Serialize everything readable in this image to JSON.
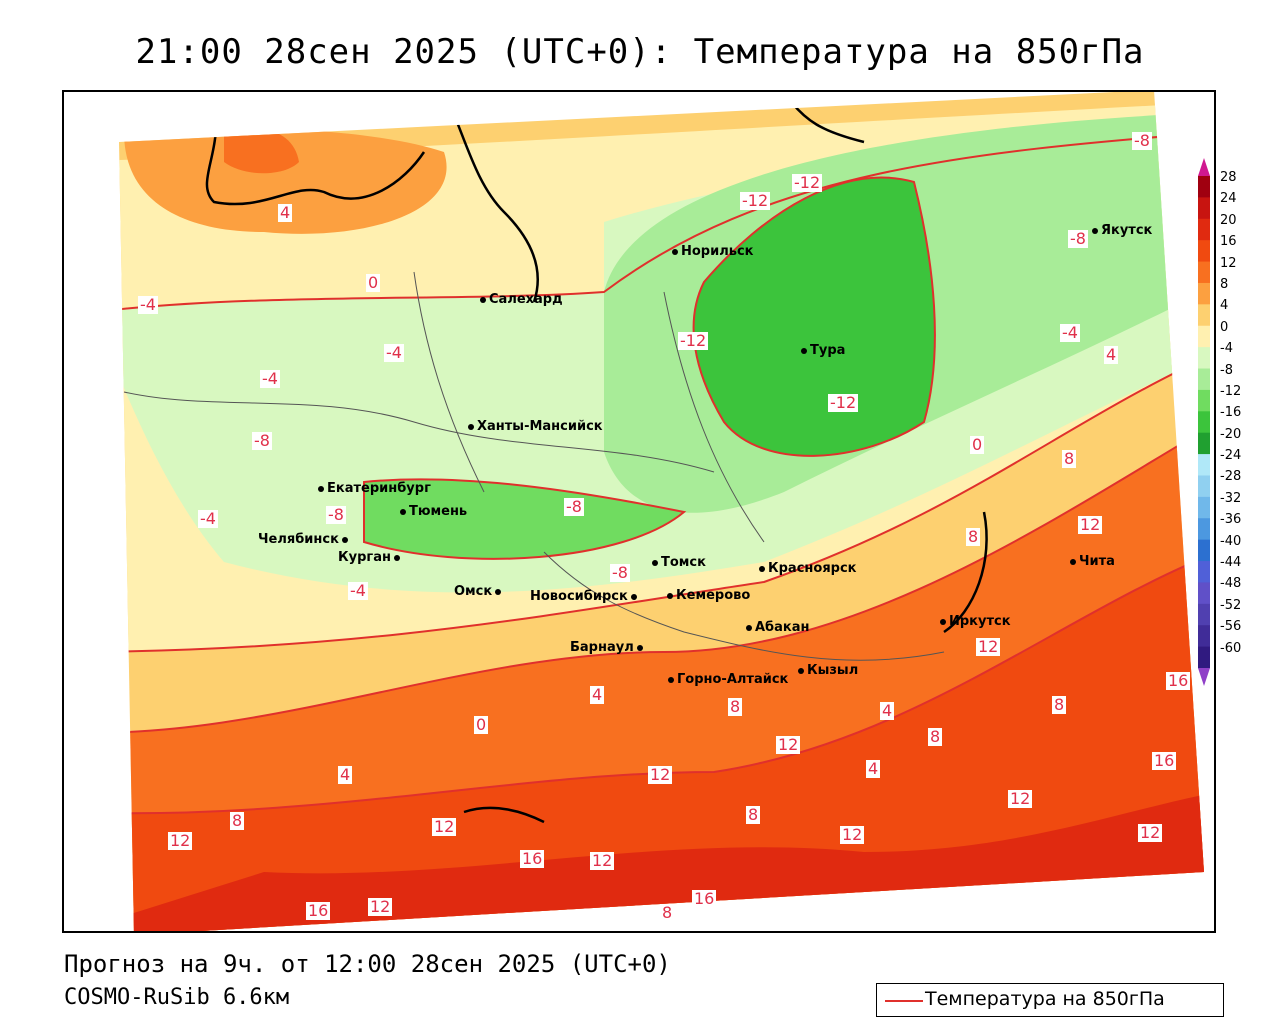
{
  "title": "21:00 28сен 2025 (UTC+0): Температура на 850гПа",
  "footer": {
    "forecast": "Прогноз на 9ч. от 12:00 28сен 2025 (UTC+0)",
    "model": "COSMO-RuSib 6.6км"
  },
  "legend": {
    "label": "Температура на 850гПа",
    "line_color": "#e0302c"
  },
  "colorbar": {
    "labels": [
      "28",
      "24",
      "20",
      "16",
      "12",
      "8",
      "4",
      "0",
      "-4",
      "-8",
      "-12",
      "-16",
      "-20",
      "-24",
      "-28",
      "-32",
      "-36",
      "-40",
      "-44",
      "-48",
      "-52",
      "-56",
      "-60"
    ],
    "colors": [
      "#a00010",
      "#c81410",
      "#e02a10",
      "#f04a10",
      "#f87020",
      "#fca040",
      "#fdd070",
      "#fff0b0",
      "#d8f8c0",
      "#a8ec98",
      "#70dc60",
      "#3cc43c",
      "#20a030",
      "#b0e8f8",
      "#90d0f0",
      "#70b8ea",
      "#4c98e0",
      "#2c70d0",
      "#5060d8",
      "#6050c8",
      "#5040b0",
      "#402c98",
      "#301a80"
    ]
  },
  "cities": [
    {
      "name": "Норильск"
    },
    {
      "name": "Салехард"
    },
    {
      "name": "Тура"
    },
    {
      "name": "Якутск"
    },
    {
      "name": "Ханты-Мансийск"
    },
    {
      "name": "Екатеринбург"
    },
    {
      "name": "Тюмень"
    },
    {
      "name": "Челябинск"
    },
    {
      "name": "Курган"
    },
    {
      "name": "Омск"
    },
    {
      "name": "Томск"
    },
    {
      "name": "Красноярск"
    },
    {
      "name": "Новосибирск"
    },
    {
      "name": "Кемерово"
    },
    {
      "name": "Барнаул"
    },
    {
      "name": "Абакан"
    },
    {
      "name": "Иркутск"
    },
    {
      "name": "Чита"
    },
    {
      "name": "Кызыл"
    },
    {
      "name": "Горно-Алтайск"
    }
  ],
  "isolines": [
    "4",
    "0",
    "-4",
    "-4",
    "-4",
    "-8",
    "-8",
    "-8",
    "-8",
    "-4",
    "-4",
    "-12",
    "-12",
    "-12",
    "-12",
    "-8",
    "-8",
    "-4",
    "4",
    "0",
    "8",
    "12",
    "8",
    "12",
    "16",
    "8",
    "4",
    "8",
    "12",
    "8",
    "12",
    "16",
    "4",
    "12",
    "16",
    "12",
    "16",
    "12",
    "8",
    "16",
    "8",
    "12",
    "12",
    "12",
    "12",
    "8",
    "0",
    "4",
    "4"
  ]
}
